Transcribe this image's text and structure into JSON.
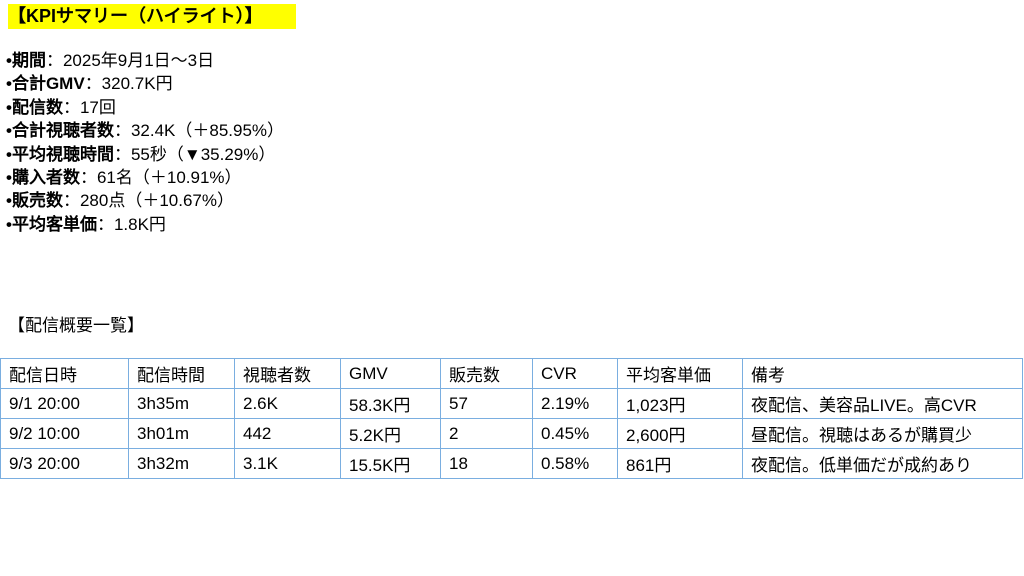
{
  "title": "【KPIサマリー（ハイライト）】",
  "kpis": [
    {
      "label": "•期間",
      "value": "：2025年9月1日〜3日"
    },
    {
      "label": "•合計GMV",
      "value": "：320.7K円"
    },
    {
      "label": "•配信数",
      "value": "：17回"
    },
    {
      "label": "•合計視聴者数",
      "value": "：32.4K（＋85.95%）"
    },
    {
      "label": "•平均視聴時間",
      "value": "：55秒（▼35.29%）"
    },
    {
      "label": "•購入者数",
      "value": "：61名（＋10.91%）"
    },
    {
      "label": "•販売数",
      "value": "：280点（＋10.67%）"
    },
    {
      "label": "•平均客単価",
      "value": "：1.8K円"
    }
  ],
  "section_title": "【配信概要一覧】",
  "table": {
    "headers": [
      "配信日時",
      "配信時間",
      "視聴者数",
      "GMV",
      "販売数",
      "CVR",
      "平均客単価",
      "備考"
    ],
    "rows": [
      [
        "9/1 20:00",
        "3h35m",
        "2.6K",
        "58.3K円",
        "57",
        "2.19%",
        "1,023円",
        "夜配信、美容品LIVE。高CVR"
      ],
      [
        "9/2 10:00",
        "3h01m",
        "442",
        "5.2K円",
        "2",
        "0.45%",
        "2,600円",
        "昼配信。視聴はあるが購買少"
      ],
      [
        "9/3 20:00",
        "3h32m",
        "3.1K",
        "15.5K円",
        "18",
        "0.58%",
        "861円",
        "夜配信。低単価だが成約あり"
      ]
    ]
  },
  "colors": {
    "highlight": "#ffff00",
    "table_border": "#7aaee0"
  }
}
